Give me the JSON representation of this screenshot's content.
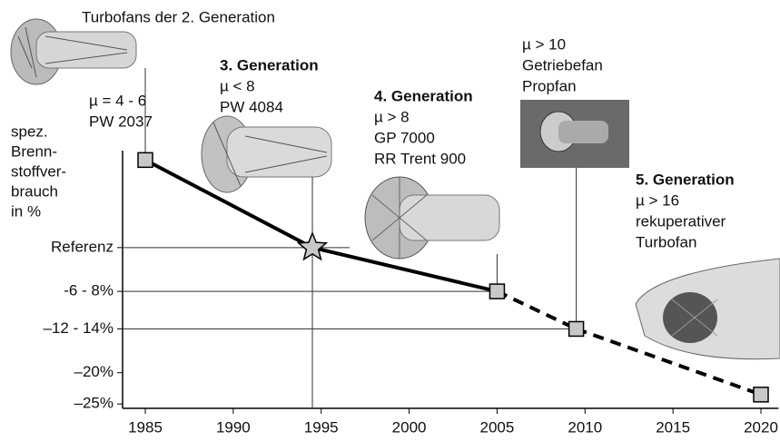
{
  "chart_data": {
    "type": "line",
    "y_label_lines": [
      "spez.",
      "Brenn-",
      "stoffver-",
      "brauch",
      "in %"
    ],
    "x": [
      1985,
      1994.5,
      2005,
      2009.5,
      2020
    ],
    "values": [
      14,
      0,
      -7,
      -13,
      -23.5
    ],
    "markers": [
      "square",
      "star",
      "square",
      "square",
      "square"
    ],
    "segment_styles": [
      "solid",
      "solid",
      "dashed",
      "dashed"
    ],
    "color": "#000000",
    "marker_color": "#c8c8c8",
    "xlim": [
      1983.7,
      2021
    ],
    "xticks": [
      1985,
      1990,
      1995,
      2000,
      2005,
      2010,
      2015,
      2020
    ],
    "ylim": [
      -25.7,
      15.5
    ],
    "yticks": [
      {
        "value": 0,
        "label": "Referenz"
      },
      {
        "value": -7,
        "label": "-6 - 8%"
      },
      {
        "value": -13,
        "label": "–12 - 14%"
      },
      {
        "value": -20,
        "label": "–20%"
      },
      {
        "value": -25,
        "label": "–25%"
      }
    ],
    "annotations": [
      {
        "lines": [
          "Turbofans der 2. Generation"
        ]
      },
      {
        "lines": [
          "µ = 4 - 6",
          "PW 2037"
        ]
      },
      {
        "lines": [
          "3. Generation",
          "µ < 8",
          "PW 4084"
        ]
      },
      {
        "lines": [
          "4. Generation",
          "µ > 8",
          "GP 7000",
          "RR Trent 900"
        ]
      },
      {
        "lines": [
          "µ > 10",
          "Getriebefan",
          "Propfan"
        ]
      },
      {
        "lines": [
          "5. Generation",
          "µ > 16",
          "rekuperativer",
          "Turbofan"
        ]
      }
    ]
  }
}
